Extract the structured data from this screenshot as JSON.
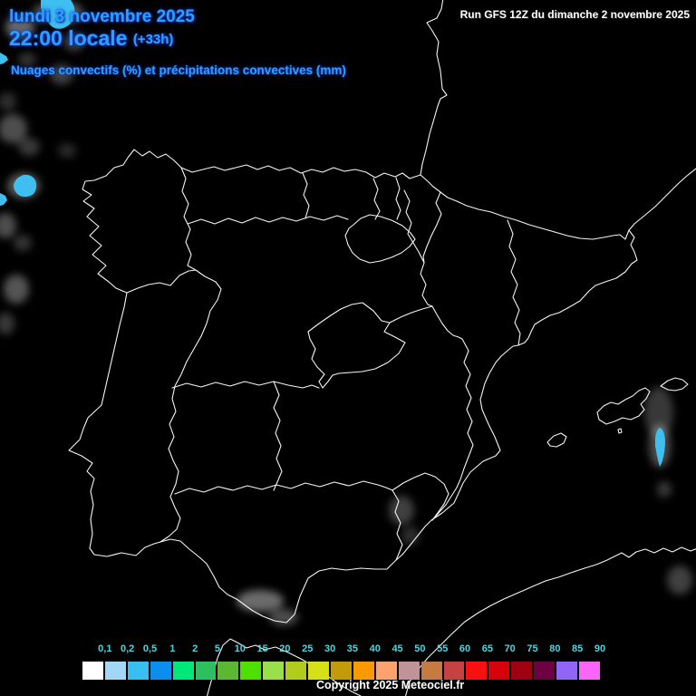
{
  "header": {
    "date_line": "lundi 3 novembre 2025",
    "time_line": "22:00 locale",
    "time_offset": "(+33h)",
    "subtitle": "Nuages convectifs (%) et précipitations convectives (mm)",
    "run_label": "Run GFS 12Z du dimanche 2 novembre 2025"
  },
  "footer": {
    "copyright": "Copyright 2025 Meteociel.fr"
  },
  "colors": {
    "background": "#000000",
    "header_text": "#2F9DFF",
    "legend_label_text": "#4FD6DC",
    "map_outline": "#F5F5F5",
    "precipitation_cyan": "#3FBFEF",
    "cloud_smudge": "#FFFFFF"
  },
  "legend": {
    "description": "convective precipitation scale (mm)",
    "labels": [
      "0,1",
      "0,2",
      "0,5",
      "1",
      "2",
      "5",
      "10",
      "15",
      "20",
      "25",
      "30",
      "35",
      "40",
      "45",
      "50",
      "55",
      "60",
      "65",
      "70",
      "75",
      "80",
      "85",
      "90"
    ],
    "box_colors": [
      "#FFFFFF",
      "#A4D7F5",
      "#38BFF0",
      "#0A8FEF",
      "#00E878",
      "#2EBF5E",
      "#5CB832",
      "#4DE000",
      "#9AE04A",
      "#B2CC1E",
      "#D6E018",
      "#C39B0A",
      "#FB9902",
      "#FCA26E",
      "#C29299",
      "#C67A42",
      "#C64143",
      "#FA1011",
      "#D70109",
      "#9E0110",
      "#6E0142",
      "#8F66F7",
      "#FC66F8"
    ]
  },
  "map": {
    "region": "Iberian Peninsula, Balearic Islands, southern France, northern Africa",
    "features": [
      "white region outlines on black ocean",
      "cyan precipitation cells off Galicia coast and east of Mallorca",
      "faint grey convective cloud patches (Atlantic NW, Gibraltar strait, Murcia coast, Balearic sea)"
    ]
  }
}
